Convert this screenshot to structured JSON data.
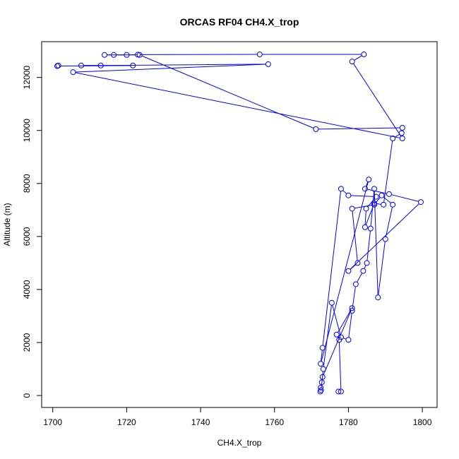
{
  "chart_data": {
    "type": "line",
    "title": "ORCAS RF04 CH4.X_trop",
    "xlabel": "CH4.X_trop",
    "ylabel": "Altitude (m)",
    "xlim": [
      1697,
      1804
    ],
    "ylim": [
      -450,
      13350
    ],
    "x_ticks": [
      1700,
      1720,
      1740,
      1760,
      1780,
      1800
    ],
    "y_ticks": [
      0,
      2000,
      4000,
      6000,
      8000,
      10000,
      12000
    ],
    "x_tick_labels": [
      "1700",
      "1720",
      "1740",
      "1760",
      "1780",
      "1800"
    ],
    "y_tick_labels": [
      "0",
      "2000",
      "4000",
      "6000",
      "8000",
      "10000",
      "12000"
    ],
    "grid": false,
    "line_color": "#0000ff",
    "marker": "open-circle",
    "series": [
      {
        "x": [
          1777.3,
          1778.0,
          1777.5,
          1776.8,
          1781.0,
          1773.0,
          1772.8,
          1772.5,
          1772.4,
          1772.6,
          1773.2,
          1775.5,
          1778.0,
          1780.0,
          1781.0,
          1782.0,
          1784.0,
          1785.0,
          1786.0,
          1787.0,
          1788.0,
          1790.0,
          1792.0,
          1789.0,
          1787.0,
          1781.0,
          1782.5,
          1780.0,
          1799.6,
          1791.0,
          1784.5,
          1785.5,
          1772.5,
          1773.0,
          1778.0,
          1780.0,
          1787.5,
          1784.8,
          1784.5,
          1787.0,
          1789.5,
          1792.0,
          1794.4,
          1794.6,
          1771.2,
          1723.5,
          1716.5,
          1714.0,
          1720.0,
          1723.0,
          1756.0,
          1784.2,
          1781.0,
          1794.6,
          1705.5,
          1758.3,
          1713.0,
          1707.7,
          1721.7,
          1701.2,
          1701.5
        ],
        "y": [
          150,
          150,
          2100,
          2300,
          3300,
          700,
          500,
          300,
          150,
          200,
          1000,
          3500,
          2200,
          2100,
          3200,
          4200,
          4700,
          5000,
          6300,
          7800,
          3700,
          5900,
          7200,
          7550,
          7200,
          7050,
          5000,
          4700,
          7300,
          7600,
          7800,
          8150,
          1200,
          1800,
          7800,
          7550,
          7500,
          7050,
          6350,
          7250,
          7200,
          9700,
          9900,
          10100,
          10050,
          12850,
          12850,
          12850,
          12850,
          12860,
          12870,
          12870,
          12600,
          9700,
          12200,
          12500,
          12450,
          12450,
          12450,
          12430,
          12450
        ]
      }
    ]
  }
}
